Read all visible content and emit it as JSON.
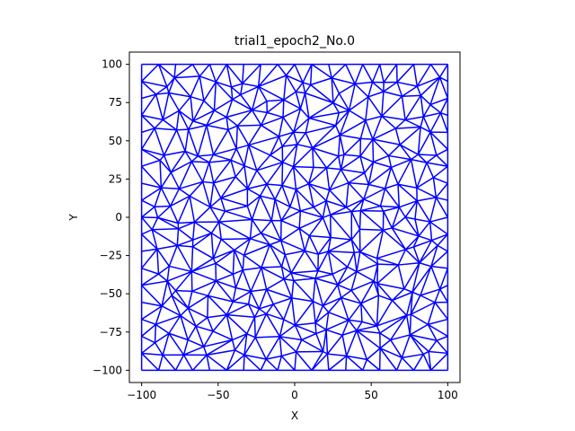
{
  "chart_data": {
    "type": "triangle_mesh",
    "title": "trial1_epoch2_No.0",
    "xlabel": "X",
    "ylabel": "Y",
    "xlim": [
      -108,
      108
    ],
    "ylim": [
      -108,
      108
    ],
    "xticks": [
      -100,
      -50,
      0,
      50,
      100
    ],
    "yticks": [
      100,
      75,
      50,
      25,
      0,
      -25,
      -50,
      -75,
      -100
    ],
    "xtick_labels": [
      "−100",
      "−50",
      "0",
      "50",
      "100"
    ],
    "ytick_labels": [
      "100",
      "75",
      "50",
      "25",
      "0",
      "−25",
      "−50",
      "−75",
      "−100"
    ],
    "domain": {
      "x": [
        -100,
        100
      ],
      "y": [
        -100,
        100
      ]
    },
    "approx_node_spacing": 11,
    "edge_color": "#0000ff",
    "grid": false,
    "legend": "none"
  }
}
